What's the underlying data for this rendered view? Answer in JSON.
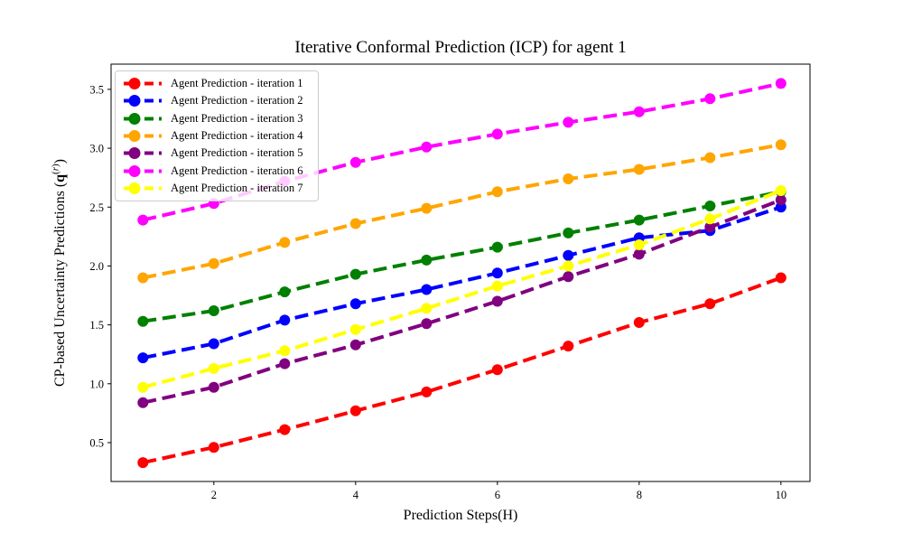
{
  "figure": {
    "background": "#ffffff"
  },
  "chart_data": {
    "type": "line",
    "title": "Iterative Conformal Prediction (ICP) for agent 1",
    "xlabel": "Prediction Steps(H)",
    "ylabel": "CP-based Uncertainty Predictions (q^(r))",
    "ylabel_parts": {
      "prefix": "CP-based Uncertainty Predictions (",
      "bold_q": "q",
      "sup_open": "(",
      "sup_var": "r",
      "sup_close": ")",
      "suffix": ")"
    },
    "x": [
      1,
      2,
      3,
      4,
      5,
      6,
      7,
      8,
      9,
      10
    ],
    "series": [
      {
        "name": "Agent Prediction - iteration 1",
        "color": "#ff0000",
        "values": [
          0.33,
          0.46,
          0.61,
          0.77,
          0.93,
          1.12,
          1.32,
          1.52,
          1.68,
          1.9
        ]
      },
      {
        "name": "Agent Prediction - iteration 2",
        "color": "#0000ff",
        "values": [
          1.22,
          1.34,
          1.54,
          1.68,
          1.8,
          1.94,
          2.09,
          2.24,
          2.3,
          2.5
        ]
      },
      {
        "name": "Agent Prediction - iteration 3",
        "color": "#008000",
        "values": [
          1.53,
          1.62,
          1.78,
          1.93,
          2.05,
          2.16,
          2.28,
          2.39,
          2.51,
          2.63
        ]
      },
      {
        "name": "Agent Prediction - iteration 4",
        "color": "#ffa500",
        "values": [
          1.9,
          2.02,
          2.2,
          2.36,
          2.49,
          2.63,
          2.74,
          2.82,
          2.92,
          3.03
        ]
      },
      {
        "name": "Agent Prediction - iteration 5",
        "color": "#800080",
        "values": [
          0.84,
          0.97,
          1.17,
          1.33,
          1.51,
          1.7,
          1.91,
          2.1,
          2.33,
          2.56
        ]
      },
      {
        "name": "Agent Prediction - iteration 6",
        "color": "#ff00ff",
        "values": [
          2.39,
          2.53,
          2.72,
          2.88,
          3.01,
          3.12,
          3.22,
          3.31,
          3.42,
          3.55
        ]
      },
      {
        "name": "Agent Prediction - iteration 7",
        "color": "#ffff00",
        "values": [
          0.97,
          1.13,
          1.28,
          1.46,
          1.64,
          1.83,
          2.0,
          2.18,
          2.4,
          2.64
        ]
      }
    ],
    "xlim": [
      0.55,
      10.41
    ],
    "ylim": [
      0.17,
      3.714
    ],
    "xticks": [
      {
        "value": 2,
        "label": "2"
      },
      {
        "value": 4,
        "label": "4"
      },
      {
        "value": 6,
        "label": "6"
      },
      {
        "value": 8,
        "label": "8"
      },
      {
        "value": 10,
        "label": "10"
      }
    ],
    "yticks": [
      {
        "value": 0.5,
        "label": "0.5"
      },
      {
        "value": 1.0,
        "label": "1.0"
      },
      {
        "value": 1.5,
        "label": "1.5"
      },
      {
        "value": 2.0,
        "label": "2.0"
      },
      {
        "value": 2.5,
        "label": "2.5"
      },
      {
        "value": 3.0,
        "label": "3.0"
      },
      {
        "value": 3.5,
        "label": "3.5"
      }
    ],
    "grid": false,
    "line_style": "dashed",
    "marker": "circle",
    "legend": {
      "position": "upper-left",
      "frame": true
    }
  }
}
